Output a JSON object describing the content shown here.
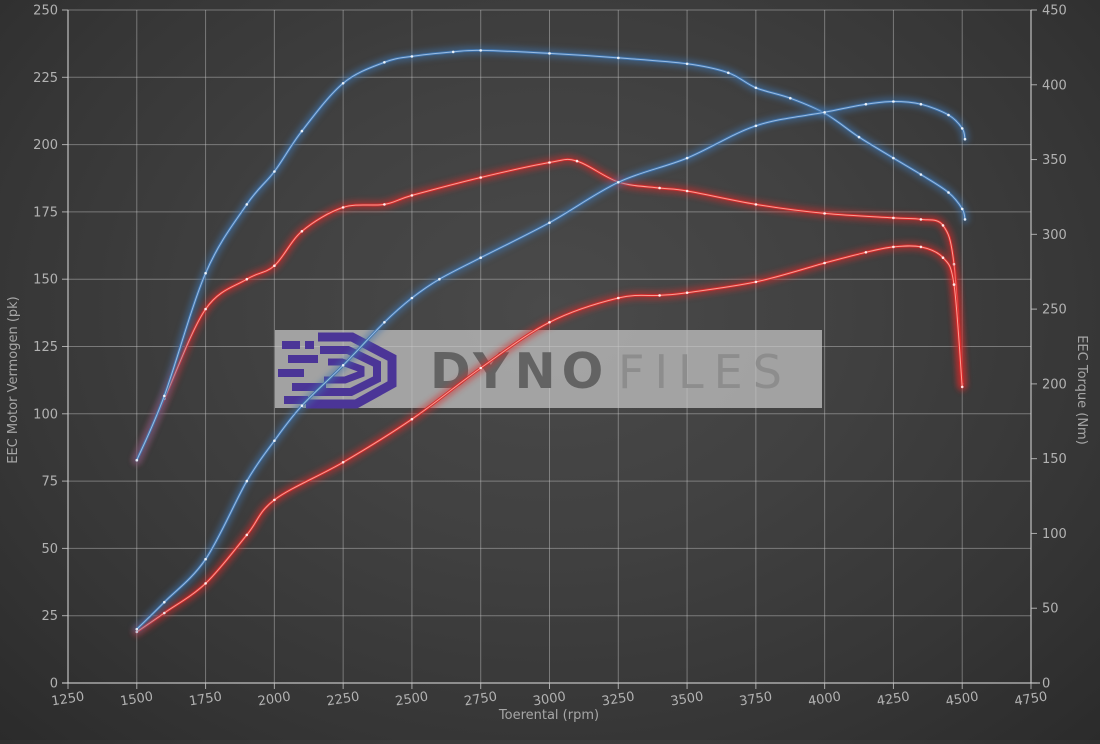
{
  "watermark": {
    "brand_bold": "DYNO",
    "brand_light": "FILES"
  },
  "axes": {
    "x_title": "Toerental (rpm)",
    "y_left_title": "EEC Motor Vermogen (pk)",
    "y_right_title": "EEC Torque (Nm)"
  },
  "colors": {
    "background": "#3d3d3d",
    "grid": "#c8c8c8",
    "tick_text": "#b2b2b2",
    "blue_curve": "#3f74ad",
    "red_curve": "#d92b2b",
    "watermark_purple": "#4b3597",
    "watermark_band": "#c5c5c5"
  },
  "chart_data": {
    "type": "line",
    "title": "",
    "xlabel": "Toerental (rpm)",
    "y_left_label": "EEC Motor Vermogen (pk)",
    "y_right_label": "EEC Torque (Nm)",
    "x_range": [
      1250,
      4750
    ],
    "y_left_range": [
      0,
      250
    ],
    "y_right_range": [
      0,
      450
    ],
    "x_ticks": [
      1250,
      1500,
      1750,
      2000,
      2250,
      2500,
      2750,
      3000,
      3250,
      3500,
      3750,
      4000,
      4250,
      4500,
      4750
    ],
    "y_left_ticks": [
      0,
      25,
      50,
      75,
      100,
      125,
      150,
      175,
      200,
      225,
      250
    ],
    "y_right_ticks": [
      0,
      50,
      100,
      150,
      200,
      250,
      300,
      350,
      400,
      450
    ],
    "grid": true,
    "legend": false,
    "series": [
      {
        "id": "red-torque",
        "axis": "right",
        "unit": "Nm",
        "color": "#d92b2b",
        "highlight": "#ffb3a7",
        "points": [
          [
            1500,
            149
          ],
          [
            1600,
            190
          ],
          [
            1750,
            250
          ],
          [
            1900,
            270
          ],
          [
            2000,
            279
          ],
          [
            2100,
            302
          ],
          [
            2250,
            318
          ],
          [
            2400,
            320
          ],
          [
            2500,
            326
          ],
          [
            2750,
            338
          ],
          [
            3000,
            348
          ],
          [
            3100,
            349
          ],
          [
            3250,
            335
          ],
          [
            3400,
            331
          ],
          [
            3500,
            329
          ],
          [
            3750,
            320
          ],
          [
            4000,
            314
          ],
          [
            4250,
            311
          ],
          [
            4350,
            310
          ],
          [
            4430,
            306
          ],
          [
            4470,
            280
          ],
          [
            4500,
            200
          ]
        ]
      },
      {
        "id": "red-power",
        "axis": "left",
        "unit": "pk",
        "color": "#d92b2b",
        "highlight": "#ffb3a7",
        "points": [
          [
            1500,
            19
          ],
          [
            1600,
            26
          ],
          [
            1750,
            37
          ],
          [
            1900,
            55
          ],
          [
            2000,
            68
          ],
          [
            2250,
            82
          ],
          [
            2500,
            98
          ],
          [
            2750,
            117
          ],
          [
            3000,
            134
          ],
          [
            3250,
            143
          ],
          [
            3400,
            144
          ],
          [
            3500,
            145
          ],
          [
            3750,
            149
          ],
          [
            4000,
            156
          ],
          [
            4150,
            160
          ],
          [
            4250,
            162
          ],
          [
            4350,
            162
          ],
          [
            4430,
            158
          ],
          [
            4470,
            148
          ],
          [
            4500,
            110
          ]
        ]
      },
      {
        "id": "blue-torque",
        "axis": "right",
        "unit": "Nm",
        "color": "#3f74ad",
        "highlight": "#a9c9ec",
        "points": [
          [
            1500,
            149
          ],
          [
            1600,
            192
          ],
          [
            1750,
            274
          ],
          [
            1900,
            320
          ],
          [
            2000,
            342
          ],
          [
            2100,
            369
          ],
          [
            2250,
            401
          ],
          [
            2400,
            415
          ],
          [
            2500,
            419
          ],
          [
            2650,
            422
          ],
          [
            2750,
            423
          ],
          [
            3000,
            421
          ],
          [
            3250,
            418
          ],
          [
            3500,
            414
          ],
          [
            3650,
            408
          ],
          [
            3750,
            398
          ],
          [
            3875,
            391
          ],
          [
            4000,
            381
          ],
          [
            4125,
            365
          ],
          [
            4250,
            351
          ],
          [
            4350,
            340
          ],
          [
            4450,
            328
          ],
          [
            4500,
            317
          ],
          [
            4510,
            310
          ]
        ]
      },
      {
        "id": "blue-power",
        "axis": "left",
        "unit": "pk",
        "color": "#3f74ad",
        "highlight": "#a9c9ec",
        "points": [
          [
            1500,
            20
          ],
          [
            1600,
            30
          ],
          [
            1750,
            46
          ],
          [
            1900,
            75
          ],
          [
            2000,
            90
          ],
          [
            2100,
            103
          ],
          [
            2250,
            118
          ],
          [
            2400,
            134
          ],
          [
            2500,
            143
          ],
          [
            2600,
            150
          ],
          [
            2750,
            158
          ],
          [
            3000,
            171
          ],
          [
            3250,
            186
          ],
          [
            3500,
            195
          ],
          [
            3750,
            207
          ],
          [
            4000,
            212
          ],
          [
            4150,
            215
          ],
          [
            4250,
            216
          ],
          [
            4350,
            215
          ],
          [
            4450,
            211
          ],
          [
            4500,
            206
          ],
          [
            4510,
            202
          ]
        ]
      }
    ]
  }
}
